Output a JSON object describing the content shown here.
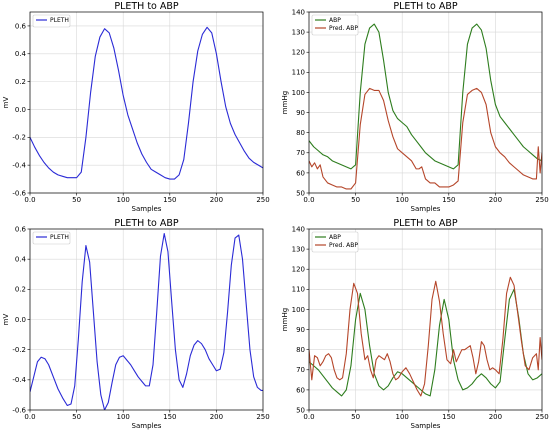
{
  "chart_data": [
    {
      "type": "line",
      "title": "PLETH to ABP",
      "xlabel": "Samples",
      "ylabel": "mV",
      "xlim": [
        0,
        250
      ],
      "ylim": [
        -0.6,
        0.7
      ],
      "xticks": [
        0,
        50,
        100,
        150,
        200,
        250
      ],
      "yticks": [
        -0.6,
        -0.4,
        -0.2,
        0.0,
        0.2,
        0.4,
        0.6
      ],
      "grid": true,
      "legend": "top-left",
      "series": [
        {
          "name": "PLETH",
          "color": "#2b2bd6",
          "x": [
            0,
            5,
            10,
            15,
            20,
            25,
            30,
            35,
            40,
            45,
            50,
            55,
            60,
            65,
            70,
            75,
            80,
            85,
            90,
            95,
            100,
            105,
            110,
            115,
            120,
            125,
            130,
            135,
            140,
            145,
            150,
            155,
            160,
            165,
            170,
            175,
            180,
            185,
            190,
            195,
            200,
            205,
            210,
            215,
            220,
            225,
            230,
            235,
            240,
            245,
            250
          ],
          "y": [
            -0.2,
            -0.27,
            -0.33,
            -0.38,
            -0.42,
            -0.45,
            -0.47,
            -0.48,
            -0.49,
            -0.49,
            -0.49,
            -0.45,
            -0.2,
            0.12,
            0.38,
            0.52,
            0.58,
            0.55,
            0.44,
            0.28,
            0.1,
            -0.04,
            -0.14,
            -0.24,
            -0.32,
            -0.38,
            -0.43,
            -0.45,
            -0.47,
            -0.49,
            -0.5,
            -0.5,
            -0.47,
            -0.36,
            -0.1,
            0.2,
            0.42,
            0.54,
            0.59,
            0.55,
            0.4,
            0.2,
            0.02,
            -0.1,
            -0.18,
            -0.24,
            -0.3,
            -0.35,
            -0.38,
            -0.4,
            -0.42
          ]
        }
      ]
    },
    {
      "type": "line",
      "title": "PLETH to ABP",
      "xlabel": "Samples",
      "ylabel": "mmHg",
      "xlim": [
        0,
        250
      ],
      "ylim": [
        50,
        140
      ],
      "xticks": [
        0,
        50,
        100,
        150,
        200,
        250
      ],
      "yticks": [
        50,
        60,
        70,
        80,
        90,
        100,
        110,
        120,
        130,
        140
      ],
      "grid": true,
      "legend": "top-left",
      "series": [
        {
          "name": "ABP",
          "color": "#2e7d1e",
          "x": [
            0,
            5,
            10,
            15,
            20,
            25,
            30,
            35,
            40,
            45,
            50,
            55,
            60,
            65,
            70,
            75,
            80,
            85,
            90,
            95,
            100,
            105,
            110,
            115,
            120,
            125,
            130,
            135,
            140,
            145,
            150,
            155,
            160,
            165,
            170,
            175,
            180,
            185,
            190,
            195,
            200,
            205,
            210,
            215,
            220,
            225,
            230,
            235,
            240,
            245,
            250
          ],
          "y": [
            76,
            73,
            71,
            69,
            68,
            66,
            65,
            64,
            63,
            62,
            64,
            100,
            124,
            132,
            134,
            130,
            116,
            100,
            91,
            87,
            85,
            83,
            79,
            76,
            73,
            70,
            68,
            66,
            65,
            64,
            63,
            62,
            64,
            100,
            124,
            132,
            134,
            131,
            122,
            106,
            94,
            88,
            85,
            82,
            79,
            76,
            73,
            71,
            69,
            67,
            66
          ]
        },
        {
          "name": "Pred. ABP",
          "color": "#b5462a",
          "x": [
            0,
            3,
            6,
            9,
            12,
            15,
            20,
            25,
            30,
            35,
            40,
            45,
            50,
            55,
            60,
            65,
            70,
            75,
            80,
            85,
            90,
            95,
            100,
            105,
            110,
            115,
            118,
            121,
            125,
            130,
            135,
            140,
            145,
            150,
            155,
            160,
            165,
            170,
            175,
            180,
            185,
            190,
            195,
            200,
            205,
            210,
            215,
            220,
            225,
            230,
            235,
            240,
            244,
            246,
            248,
            250
          ],
          "y": [
            66,
            63,
            65,
            62,
            64,
            58,
            55,
            54,
            53,
            53,
            52,
            52,
            55,
            84,
            99,
            102,
            101,
            101,
            96,
            86,
            78,
            72,
            70,
            68,
            66,
            62,
            62,
            63,
            57,
            55,
            55,
            53,
            53,
            53,
            54,
            56,
            85,
            99,
            101,
            102,
            100,
            94,
            80,
            73,
            70,
            68,
            65,
            63,
            61,
            59,
            58,
            57,
            57,
            73,
            60,
            70
          ]
        }
      ]
    },
    {
      "type": "line",
      "title": "PLETH to ABP",
      "xlabel": "Samples",
      "ylabel": "mV",
      "xlim": [
        0,
        250
      ],
      "ylim": [
        -0.6,
        0.6
      ],
      "xticks": [
        0,
        50,
        100,
        150,
        200,
        250
      ],
      "yticks": [
        -0.6,
        -0.4,
        -0.2,
        0.0,
        0.2,
        0.4,
        0.6
      ],
      "grid": true,
      "legend": "top-left",
      "series": [
        {
          "name": "PLETH",
          "color": "#2b2bd6",
          "x": [
            0,
            4,
            8,
            12,
            16,
            20,
            25,
            30,
            35,
            40,
            44,
            48,
            52,
            56,
            60,
            64,
            68,
            72,
            76,
            80,
            84,
            88,
            92,
            96,
            100,
            104,
            108,
            112,
            116,
            120,
            124,
            128,
            132,
            136,
            140,
            144,
            148,
            152,
            156,
            160,
            164,
            168,
            172,
            176,
            180,
            184,
            188,
            192,
            196,
            200,
            204,
            208,
            212,
            216,
            220,
            224,
            228,
            232,
            236,
            240,
            244,
            248,
            250
          ],
          "y": [
            -0.48,
            -0.38,
            -0.28,
            -0.25,
            -0.26,
            -0.3,
            -0.38,
            -0.46,
            -0.52,
            -0.57,
            -0.56,
            -0.44,
            -0.12,
            0.25,
            0.49,
            0.38,
            0.05,
            -0.28,
            -0.5,
            -0.6,
            -0.55,
            -0.42,
            -0.3,
            -0.25,
            -0.24,
            -0.27,
            -0.3,
            -0.34,
            -0.38,
            -0.41,
            -0.44,
            -0.44,
            -0.3,
            0.05,
            0.42,
            0.57,
            0.45,
            0.12,
            -0.2,
            -0.4,
            -0.45,
            -0.36,
            -0.24,
            -0.17,
            -0.14,
            -0.16,
            -0.2,
            -0.26,
            -0.3,
            -0.34,
            -0.33,
            -0.22,
            0.05,
            0.36,
            0.54,
            0.56,
            0.4,
            0.1,
            -0.2,
            -0.38,
            -0.45,
            -0.47,
            -0.47
          ]
        }
      ]
    },
    {
      "type": "line",
      "title": "PLETH to ABP",
      "xlabel": "Samples",
      "ylabel": "mmHg",
      "xlim": [
        0,
        250
      ],
      "ylim": [
        50,
        140
      ],
      "xticks": [
        0,
        50,
        100,
        150,
        200,
        250
      ],
      "yticks": [
        50,
        60,
        70,
        80,
        90,
        100,
        110,
        120,
        130,
        140
      ],
      "grid": true,
      "legend": "top-left",
      "series": [
        {
          "name": "ABP",
          "color": "#2e7d1e",
          "x": [
            0,
            5,
            10,
            15,
            20,
            25,
            30,
            35,
            40,
            45,
            50,
            55,
            60,
            65,
            70,
            75,
            80,
            85,
            90,
            95,
            100,
            105,
            110,
            115,
            120,
            125,
            130,
            135,
            140,
            145,
            150,
            155,
            160,
            165,
            170,
            175,
            180,
            185,
            190,
            195,
            200,
            205,
            210,
            215,
            220,
            225,
            230,
            235,
            240,
            245,
            250
          ],
          "y": [
            74,
            72,
            70,
            67,
            64,
            61,
            59,
            57,
            60,
            72,
            95,
            108,
            100,
            82,
            68,
            62,
            60,
            62,
            66,
            69,
            68,
            66,
            64,
            62,
            60,
            58,
            57,
            70,
            92,
            105,
            95,
            75,
            65,
            60,
            61,
            63,
            66,
            68,
            66,
            63,
            61,
            64,
            85,
            105,
            110,
            96,
            78,
            68,
            65,
            66,
            68
          ]
        },
        {
          "name": "Pred. ABP",
          "color": "#b5462a",
          "x": [
            0,
            3,
            6,
            9,
            12,
            15,
            18,
            21,
            24,
            27,
            30,
            33,
            36,
            40,
            44,
            48,
            52,
            56,
            60,
            63,
            66,
            69,
            72,
            75,
            78,
            81,
            84,
            87,
            90,
            93,
            96,
            100,
            104,
            108,
            112,
            116,
            120,
            124,
            128,
            132,
            136,
            140,
            144,
            148,
            152,
            155,
            158,
            161,
            164,
            167,
            170,
            173,
            176,
            179,
            182,
            185,
            188,
            191,
            194,
            197,
            200,
            204,
            208,
            212,
            216,
            220,
            224,
            228,
            232,
            236,
            240,
            244,
            246,
            248,
            250
          ],
          "y": [
            80,
            65,
            77,
            76,
            72,
            74,
            77,
            78,
            76,
            70,
            66,
            65,
            66,
            78,
            100,
            113,
            108,
            88,
            75,
            77,
            70,
            66,
            75,
            77,
            76,
            75,
            78,
            74,
            68,
            65,
            66,
            69,
            71,
            68,
            64,
            60,
            57,
            63,
            82,
            105,
            114,
            104,
            88,
            75,
            73,
            80,
            74,
            77,
            80,
            80,
            81,
            82,
            76,
            68,
            74,
            84,
            82,
            75,
            70,
            71,
            70,
            68,
            85,
            108,
            116,
            112,
            98,
            84,
            72,
            70,
            76,
            78,
            70,
            86,
            75
          ]
        }
      ]
    }
  ]
}
